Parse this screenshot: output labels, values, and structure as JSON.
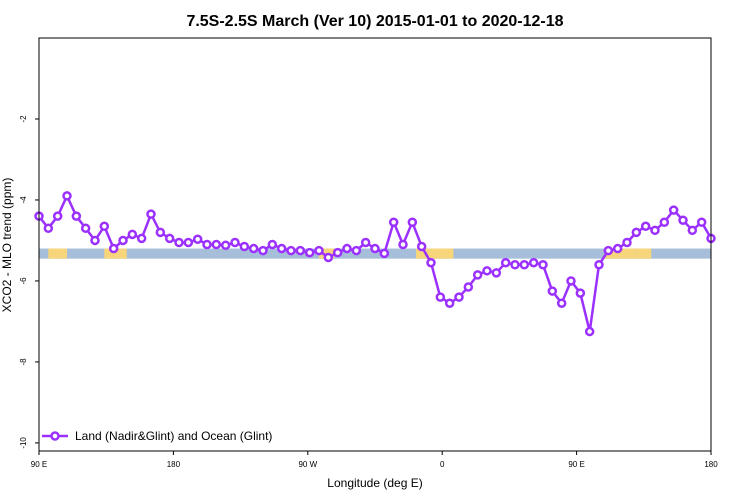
{
  "chart_data": {
    "type": "line",
    "title": "7.5S-2.5S March (Ver 10)   2015-01-01 to 2020-12-18",
    "xlabel": "Longitude (deg E)",
    "ylabel": "XCO2 - MLO trend (ppm)",
    "x_tick_labels": [
      "90 E",
      "180",
      "90 W",
      "0",
      "90 E",
      "180"
    ],
    "y_tick_labels": [
      "-2",
      "-4",
      "-6",
      "-8",
      "-10"
    ],
    "y_ticks": [
      -2,
      -4,
      -6,
      -8,
      -10
    ],
    "ylim": [
      -10.2,
      0
    ],
    "xlim": [
      0,
      360
    ],
    "grid": false,
    "legend_position": "bottom-left",
    "series": [
      {
        "name": "Land (Nadir&Glint) and Ocean (Glint)",
        "color": "#9b30ff",
        "x": [
          0,
          5,
          10,
          15,
          20,
          25,
          30,
          35,
          40,
          45,
          50,
          55,
          60,
          65,
          70,
          75,
          80,
          85,
          90,
          95,
          100,
          105,
          110,
          115,
          120,
          125,
          130,
          135,
          140,
          145,
          150,
          155,
          160,
          165,
          170,
          175,
          180,
          185,
          190,
          195,
          200,
          205,
          210,
          215,
          220,
          225,
          230,
          235,
          240,
          245,
          250,
          255,
          260,
          265,
          270,
          275,
          280,
          285,
          290,
          295,
          300,
          305,
          310,
          315,
          320,
          325,
          330,
          335,
          340,
          345,
          350,
          355,
          360
        ],
        "values": [
          -4.4,
          -4.7,
          -4.4,
          -3.9,
          -4.4,
          -4.7,
          -5.0,
          -4.65,
          -5.2,
          -5.0,
          -4.85,
          -4.95,
          -4.35,
          -4.8,
          -4.95,
          -5.05,
          -5.05,
          -4.97,
          -5.1,
          -5.1,
          -5.12,
          -5.05,
          -5.15,
          -5.2,
          -5.25,
          -5.1,
          -5.2,
          -5.25,
          -5.25,
          -5.3,
          -5.25,
          -5.42,
          -5.3,
          -5.2,
          -5.25,
          -5.05,
          -5.2,
          -5.32,
          -4.55,
          -5.1,
          -4.55,
          -5.15,
          -5.55,
          -6.4,
          -6.55,
          -6.4,
          -6.15,
          -5.85,
          -5.75,
          -5.8,
          -5.55,
          -5.6,
          -5.6,
          -5.55,
          -5.6,
          -6.25,
          -6.55,
          -6.0,
          -6.3,
          -7.25,
          -5.6,
          -5.25,
          -5.2,
          -5.05,
          -4.8,
          -4.65,
          -4.75,
          -4.55,
          -4.25,
          -4.5,
          -4.75,
          -4.55,
          -4.95
        ]
      }
    ],
    "surface_band": {
      "y_top": -5.2,
      "y_bottom": -5.45,
      "ocean_color": "#a7bedb",
      "land_color": "#f6d57b",
      "land_ranges": [
        [
          5,
          15
        ],
        [
          35,
          47
        ],
        [
          150,
          158
        ],
        [
          152,
          154
        ],
        [
          202,
          215
        ],
        [
          212,
          222
        ],
        [
          303,
          320
        ],
        [
          320,
          328
        ]
      ]
    }
  }
}
